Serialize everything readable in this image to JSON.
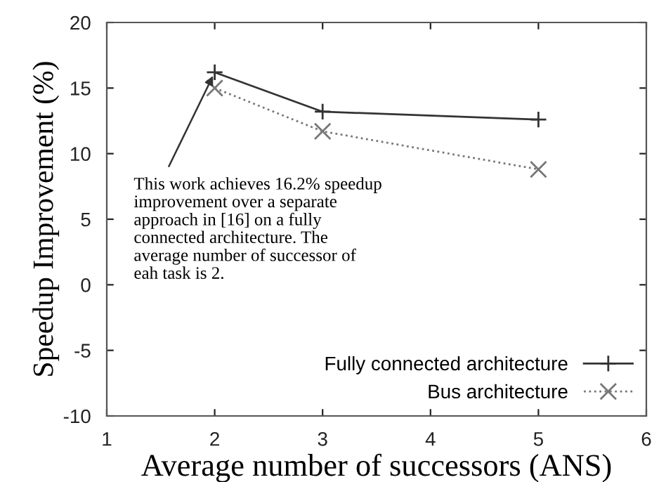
{
  "chart_data": {
    "type": "line",
    "xlabel": "Average number of successors (ANS)",
    "ylabel": "Speedup Improvement (%)",
    "xlim": [
      1,
      6
    ],
    "xticks": [
      1,
      2,
      3,
      4,
      5,
      6
    ],
    "ylim": [
      -10,
      20
    ],
    "yticks": [
      -10,
      -5,
      0,
      5,
      10,
      15,
      20
    ],
    "grid": false,
    "legend": "bottom right",
    "series": [
      {
        "name": "Fully connected architecture",
        "color": "#333333",
        "x": [
          2,
          3,
          5
        ],
        "values": [
          16.2,
          13.2,
          12.6
        ],
        "marker": "plus",
        "line_style": "solid"
      },
      {
        "name": "Bus architecture",
        "color": "#777777",
        "x": [
          2,
          3,
          5
        ],
        "values": [
          15.0,
          11.7,
          8.8
        ],
        "marker": "cross",
        "line_style": "dotted"
      }
    ],
    "annotations": [
      {
        "text": "This work achieves 16.2% speedup\nimprovement over a separate\napproach in [16] on a fully\nconnected architecture. The\naverage number of successor of\neah task is 2.",
        "x": 2,
        "y": 16.2
      }
    ]
  }
}
